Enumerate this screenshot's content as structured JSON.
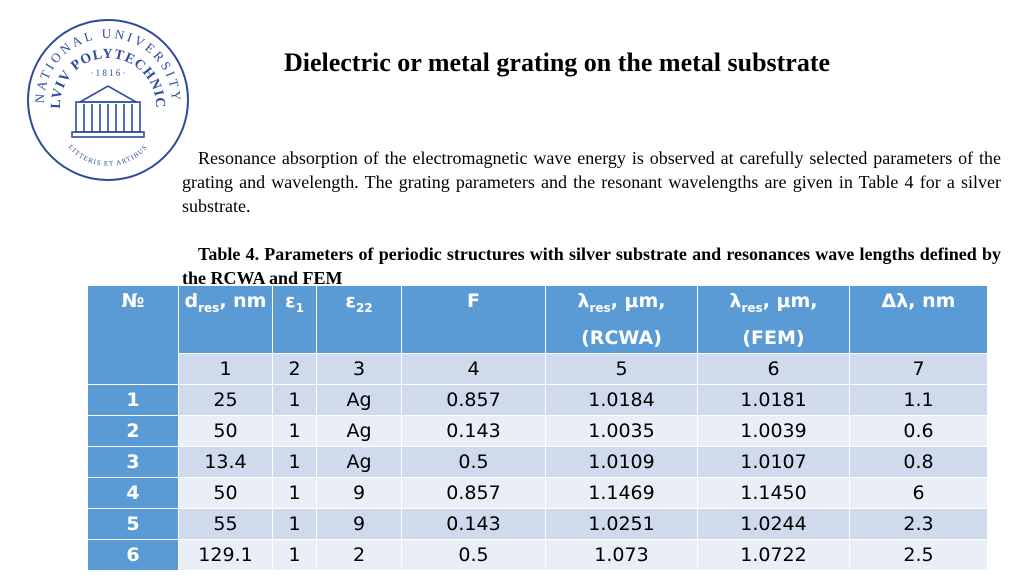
{
  "title": "Dielectric or metal grating on the metal substrate",
  "paragraph": "Resonance absorption of the electromagnetic wave energy is observed at carefully selected parameters of the grating and wavelength. The grating parameters and the resonant wavelengths are given in Table 4 for a silver substrate.",
  "caption": "Table 4. Parameters of periodic structures with silver substrate and resonances wave lengths defined by the RCWA and FEM",
  "logo": {
    "arc_text": "NATIONAL UNIVERSITY",
    "name": "LVIV POLYTECHNIC",
    "year": "· 1 8 1 6 ·",
    "motto": "LITTERIS ET ARTIBUS"
  },
  "table": {
    "headers": {
      "no": "№",
      "d_main": "d",
      "d_sub": "res",
      "d_unit": ", nm",
      "e1_main": "ε",
      "e1_sub": "1",
      "e22_main": "ε",
      "e22_sub": "22",
      "f": "F",
      "rcwa_main": "λ",
      "rcwa_sub": "res",
      "rcwa_unit": ", μm,",
      "rcwa_method": "(RCWA)",
      "fem_main": "λ",
      "fem_sub": "res",
      "fem_unit": ", μm,",
      "fem_method": "(FEM)",
      "dl": "Δλ, nm"
    },
    "column_numbers": [
      "1",
      "2",
      "3",
      "4",
      "5",
      "6",
      "7"
    ],
    "rows": [
      {
        "no": "1",
        "cells": [
          "25",
          "1",
          "Ag",
          "0.857",
          "1.0184",
          "1.0181",
          "1.1"
        ]
      },
      {
        "no": "2",
        "cells": [
          "50",
          "1",
          "Ag",
          "0.143",
          "1.0035",
          "1.0039",
          "0.6"
        ]
      },
      {
        "no": "3",
        "cells": [
          "13.4",
          "1",
          "Ag",
          "0.5",
          "1.0109",
          "1.0107",
          "0.8"
        ]
      },
      {
        "no": "4",
        "cells": [
          "50",
          "1",
          "9",
          "0.857",
          "1.1469",
          "1.1450",
          "6"
        ]
      },
      {
        "no": "5",
        "cells": [
          "55",
          "1",
          "9",
          "0.143",
          "1.0251",
          "1.0244",
          "2.3"
        ]
      },
      {
        "no": "6",
        "cells": [
          "129.1",
          "1",
          "2",
          "0.5",
          "1.073",
          "1.0722",
          "2.5"
        ]
      }
    ]
  },
  "colors": {
    "header_blue": "#5b9bd5",
    "row_dark": "#cfdaed",
    "row_light": "#e9eef7",
    "logo_blue": "#2c4c9c"
  }
}
